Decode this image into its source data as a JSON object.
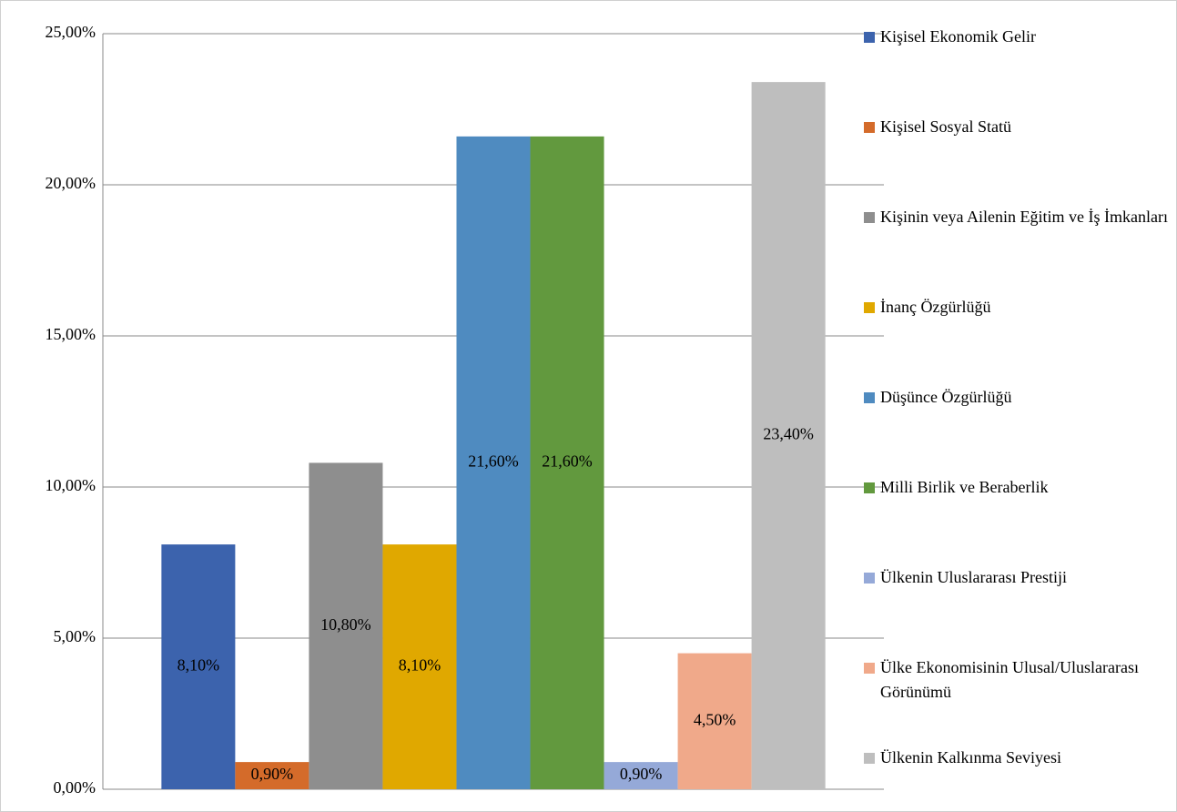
{
  "chart_data": {
    "type": "bar",
    "categories": [
      null
    ],
    "series": [
      {
        "name": "Kişisel Ekonomik Gelir",
        "color": "#3c63ad",
        "values": [
          8.1
        ],
        "value_labels": [
          "8,10%"
        ]
      },
      {
        "name": "Kişisel Sosyal Statü",
        "color": "#d46b2a",
        "values": [
          0.9
        ],
        "value_labels": [
          "0,90%"
        ]
      },
      {
        "name": "Kişinin veya Ailenin Eğitim ve İş İmkanları",
        "color": "#8e8e8e",
        "values": [
          10.8
        ],
        "value_labels": [
          "10,80%"
        ]
      },
      {
        "name": "İnanç Özgürlüğü",
        "color": "#e0a800",
        "values": [
          8.1
        ],
        "value_labels": [
          "8,10%"
        ]
      },
      {
        "name": "Düşünce Özgürlüğü",
        "color": "#4f8bc0",
        "values": [
          21.6
        ],
        "value_labels": [
          "21,60%"
        ]
      },
      {
        "name": "Milli Birlik ve Beraberlik",
        "color": "#62993e",
        "values": [
          21.6
        ],
        "value_labels": [
          "21,60%"
        ]
      },
      {
        "name": "Ülkenin Uluslararası Prestiji",
        "color": "#95a9d8",
        "values": [
          0.9
        ],
        "value_labels": [
          "0,90%"
        ]
      },
      {
        "name": "Ülke Ekonomisinin Ulusal/Uluslararası Görünümü",
        "color": "#f0a98a",
        "values": [
          4.5
        ],
        "value_labels": [
          "4,50%"
        ]
      },
      {
        "name": "Ülkenin Kalkınma Seviyesi",
        "color": "#bebebe",
        "values": [
          23.4
        ],
        "value_labels": [
          "23,40%"
        ]
      }
    ],
    "ylim": [
      0,
      25
    ],
    "yticks": [
      {
        "value": 0,
        "label": "0,00%"
      },
      {
        "value": 5,
        "label": "5,00%"
      },
      {
        "value": 10,
        "label": "10,00%"
      },
      {
        "value": 15,
        "label": "15,00%"
      },
      {
        "value": 20,
        "label": "20,00%"
      },
      {
        "value": 25,
        "label": "25,00%"
      }
    ],
    "grid": true,
    "legend": "right"
  }
}
